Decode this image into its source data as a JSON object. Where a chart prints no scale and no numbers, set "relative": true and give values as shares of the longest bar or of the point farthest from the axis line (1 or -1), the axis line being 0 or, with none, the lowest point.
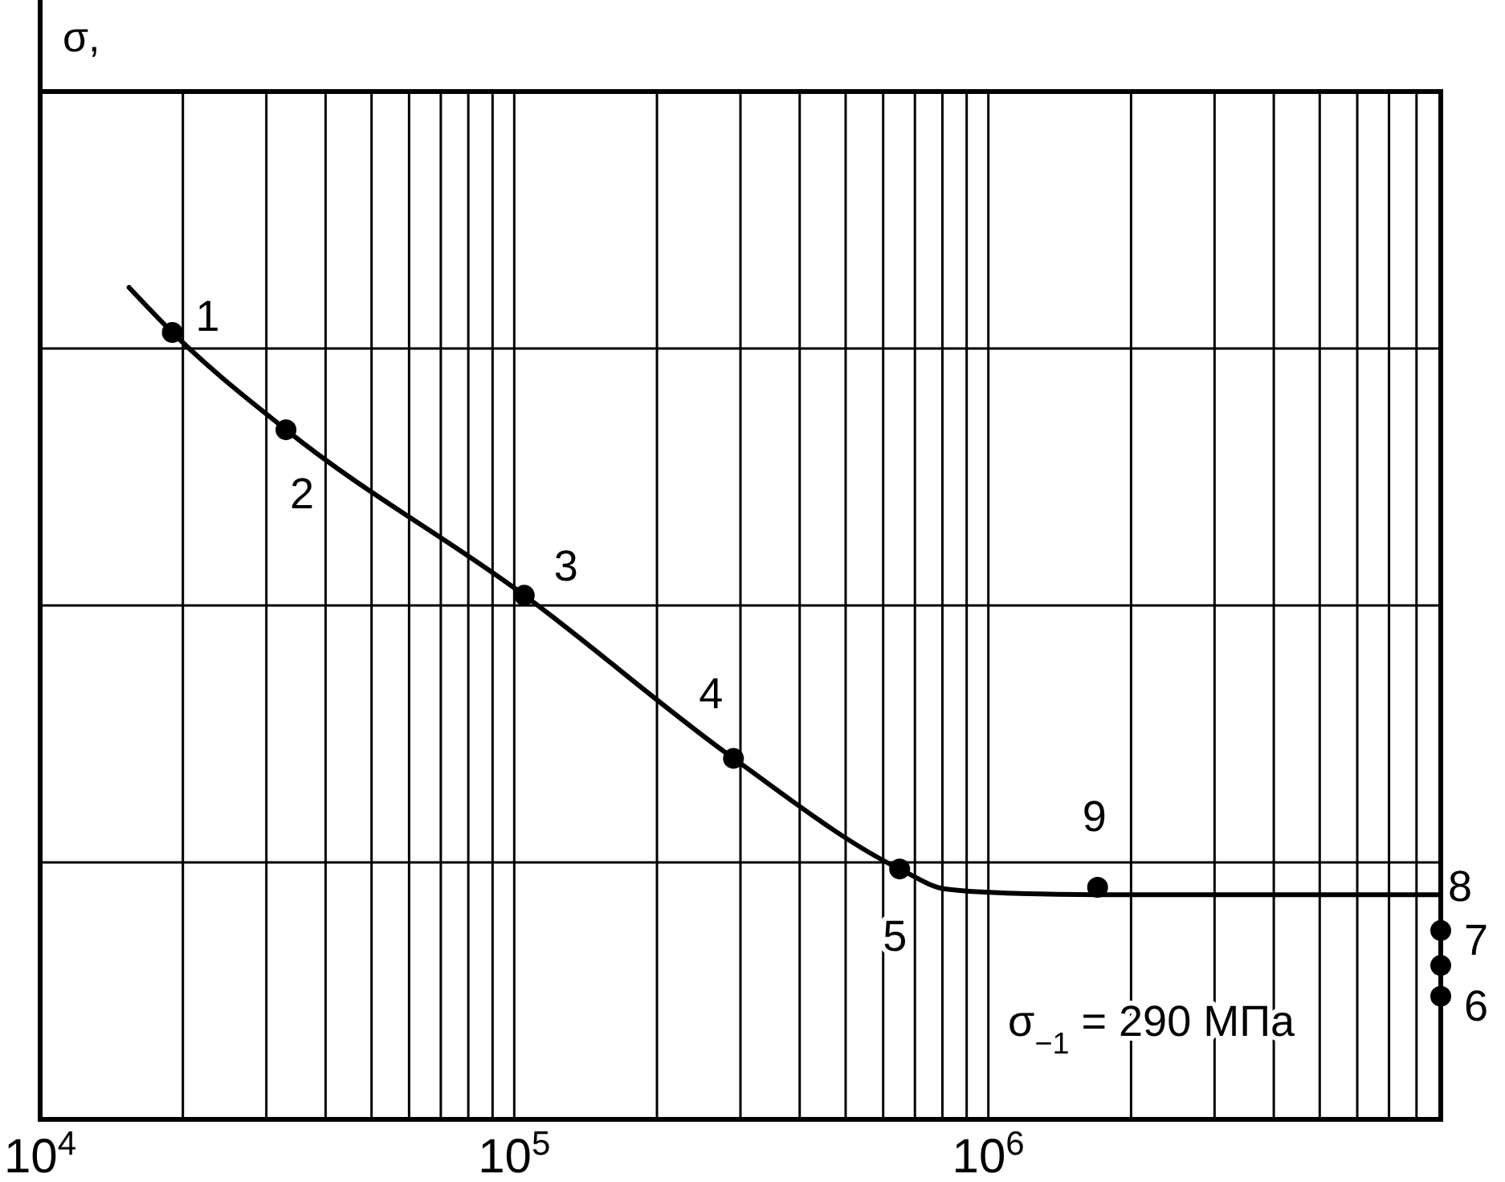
{
  "chart_data": {
    "type": "scatter",
    "relative": true,
    "log": "x",
    "grid": true,
    "marker": "circle",
    "xlim": [
      10000,
      9000000
    ],
    "xticks": [
      {
        "value": 10000,
        "label": "10$^{4}$"
      },
      {
        "value": 20000,
        "label": null
      },
      {
        "value": 30000,
        "label": null
      },
      {
        "value": 40000,
        "label": null
      },
      {
        "value": 50000,
        "label": null
      },
      {
        "value": 60000,
        "label": null
      },
      {
        "value": 70000,
        "label": null
      },
      {
        "value": 80000,
        "label": null
      },
      {
        "value": 90000,
        "label": null
      },
      {
        "value": 100000,
        "label": "10$^{5}$"
      },
      {
        "value": 200000,
        "label": null
      },
      {
        "value": 300000,
        "label": null
      },
      {
        "value": 400000,
        "label": null
      },
      {
        "value": 500000,
        "label": null
      },
      {
        "value": 600000,
        "label": null
      },
      {
        "value": 700000,
        "label": null
      },
      {
        "value": 800000,
        "label": null
      },
      {
        "value": 900000,
        "label": null
      },
      {
        "value": 1000000,
        "label": "10$^{6}$"
      },
      {
        "value": 2000000,
        "label": null
      },
      {
        "value": 3000000,
        "label": null
      },
      {
        "value": 4000000,
        "label": null
      },
      {
        "value": 5000000,
        "label": null
      },
      {
        "value": 6000000,
        "label": null
      },
      {
        "value": 7000000,
        "label": null
      },
      {
        "value": 8000000,
        "label": null
      }
    ],
    "series": [
      {
        "type": "line",
        "color": "#000000",
        "marker": "none",
        "line_style": "solid",
        "x": [
          15400,
          19000,
          33000,
          105000,
          290000,
          650000,
          810000,
          1090000,
          1700000,
          9000000
        ],
        "values": [
          1.0,
          0.946,
          0.829,
          0.63,
          0.434,
          0.301,
          0.277,
          0.272,
          0.27,
          0.27
        ]
      },
      {
        "color": "#000000",
        "x": [
          19000,
          33000,
          105000,
          290000,
          650000,
          9000000,
          9000000,
          9000000,
          1700000
        ],
        "values": [
          0.946,
          0.829,
          0.63,
          0.434,
          0.301,
          0.148,
          0.185,
          0.227,
          0.279
        ]
      }
    ],
    "annotations": [
      {
        "text": "1",
        "x": 19000,
        "y": 0.946
      },
      {
        "text": "2",
        "x": 33000,
        "y": 0.829
      },
      {
        "text": "3",
        "x": 105000,
        "y": 0.63
      },
      {
        "text": "4",
        "x": 290000,
        "y": 0.434
      },
      {
        "text": "5",
        "x": 650000,
        "y": 0.301
      },
      {
        "text": "6",
        "x": 9000000,
        "y": 0.148
      },
      {
        "text": "7",
        "x": 9000000,
        "y": 0.227
      },
      {
        "text": "8",
        "x": 9000000,
        "y": 0.27
      },
      {
        "text": "9",
        "x": 1700000,
        "y": 0.279
      },
      "σ$_{−1}$ = 290 МПа",
      "σ,"
    ]
  }
}
